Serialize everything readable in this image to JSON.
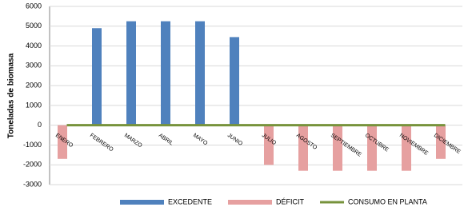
{
  "chart_data": {
    "type": "bar",
    "y_label": "Toneladas de biomasa",
    "categories": [
      "ENERO",
      "FEBRERO",
      "MARZO",
      "ABRIL",
      "MAYO",
      "JUNIO",
      "JULIO",
      "AGOSTO",
      "SEPTIEMBRE",
      "OCTUBRE",
      "NOVIEMBRE",
      "DICIEMBRE"
    ],
    "series": [
      {
        "name": "EXCEDENTE",
        "color": "#4f81bd",
        "type": "bar",
        "values": [
          null,
          4900,
          5250,
          5250,
          5250,
          4450,
          null,
          null,
          null,
          null,
          null,
          null
        ]
      },
      {
        "name": "DÉFICIT",
        "color": "#e6a0a0",
        "type": "bar",
        "values": [
          -1700,
          null,
          null,
          null,
          null,
          null,
          -2000,
          -2300,
          -2300,
          -2300,
          -2300,
          -1700
        ]
      },
      {
        "name": "CONSUMO EN PLANTA",
        "color": "#77933c",
        "type": "line",
        "values": [
          0,
          0,
          0,
          0,
          0,
          0,
          0,
          0,
          0,
          0,
          0,
          0
        ]
      }
    ],
    "ylim": [
      -3000,
      6000
    ],
    "yticks": [
      -3000,
      -2000,
      -1000,
      0,
      1000,
      2000,
      3000,
      4000,
      5000,
      6000
    ],
    "grid": true
  }
}
